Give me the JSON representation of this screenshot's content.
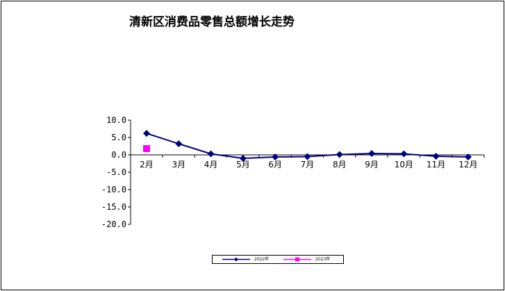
{
  "chart_data": {
    "type": "line",
    "title": "清新区消费品零售总额增长走势",
    "xlabel": "",
    "ylabel": "",
    "categories": [
      "2月",
      "3月",
      "4月",
      "5月",
      "6月",
      "7月",
      "8月",
      "9月",
      "10月",
      "11月",
      "12月"
    ],
    "y_tick_labels": [
      "10.0",
      "5.0",
      "0.0",
      "-5.0",
      "-10.0",
      "-15.0",
      "-20.0"
    ],
    "ylim": [
      -20,
      10
    ],
    "grid": false,
    "legend_position": "bottom",
    "series": [
      {
        "name": "2022年",
        "color": "#000080",
        "marker": "diamond",
        "values": [
          6.2,
          3.2,
          0.3,
          -1.0,
          -0.6,
          -0.5,
          0.1,
          0.4,
          0.3,
          -0.4,
          -0.6
        ]
      },
      {
        "name": "2023年",
        "color": "#ff00ff",
        "marker": "square",
        "values": [
          1.8,
          null,
          null,
          null,
          null,
          null,
          null,
          null,
          null,
          null,
          null
        ]
      }
    ]
  }
}
